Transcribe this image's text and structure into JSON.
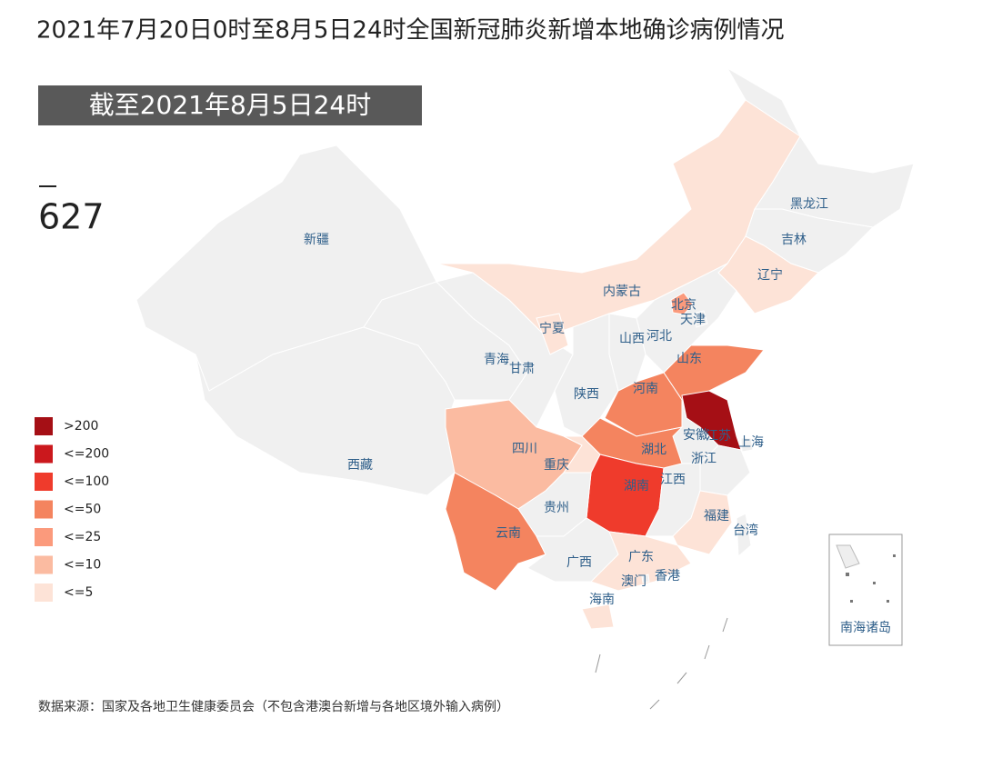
{
  "title": "2021年7月20日0时至8月5日24时全国新冠肺炎新增本地确诊病例情况",
  "badge": "截至2021年8月5日24时",
  "total": 627,
  "legend": [
    {
      "label": ">200",
      "color": "#a50f15"
    },
    {
      "label": "<=200",
      "color": "#cb181d"
    },
    {
      "label": "<=100",
      "color": "#ef3b2c"
    },
    {
      "label": "<=50",
      "color": "#f4845f"
    },
    {
      "label": "<=25",
      "color": "#fb9a7c"
    },
    {
      "label": "<=10",
      "color": "#fbbba1"
    },
    {
      "label": "<=5",
      "color": "#fde3d7"
    }
  ],
  "regions": [
    {
      "name": "新疆",
      "color": "#f0f0f0"
    },
    {
      "name": "西藏",
      "color": "#f0f0f0"
    },
    {
      "name": "青海",
      "color": "#f0f0f0"
    },
    {
      "name": "甘肃",
      "color": "#f0f0f0"
    },
    {
      "name": "内蒙古",
      "color": "#fde3d7"
    },
    {
      "name": "黑龙江",
      "color": "#f0f0f0"
    },
    {
      "name": "吉林",
      "color": "#f0f0f0"
    },
    {
      "name": "辽宁",
      "color": "#fde3d7"
    },
    {
      "name": "河北",
      "color": "#f0f0f0"
    },
    {
      "name": "北京",
      "color": "#fb9a7c"
    },
    {
      "name": "天津",
      "color": "#f0f0f0"
    },
    {
      "name": "山西",
      "color": "#f0f0f0"
    },
    {
      "name": "陕西",
      "color": "#f0f0f0"
    },
    {
      "name": "宁夏",
      "color": "#fde3d7"
    },
    {
      "name": "山东",
      "color": "#f4845f"
    },
    {
      "name": "河南",
      "color": "#f4845f"
    },
    {
      "name": "江苏",
      "color": "#a50f15"
    },
    {
      "name": "上海",
      "color": "#f0f0f0"
    },
    {
      "name": "安徽",
      "color": "#f0f0f0"
    },
    {
      "name": "浙江",
      "color": "#f0f0f0"
    },
    {
      "name": "湖北",
      "color": "#f4845f"
    },
    {
      "name": "四川",
      "color": "#fbbba1"
    },
    {
      "name": "重庆",
      "color": "#fde3d7"
    },
    {
      "name": "湖南",
      "color": "#ef3b2c"
    },
    {
      "name": "江西",
      "color": "#f0f0f0"
    },
    {
      "name": "福建",
      "color": "#fde3d7"
    },
    {
      "name": "贵州",
      "color": "#f0f0f0"
    },
    {
      "name": "云南",
      "color": "#f4845f"
    },
    {
      "name": "广西",
      "color": "#f0f0f0"
    },
    {
      "name": "广东",
      "color": "#fde3d7"
    },
    {
      "name": "香港",
      "color": "#f0f0f0"
    },
    {
      "name": "澳门",
      "color": "#f0f0f0"
    },
    {
      "name": "海南",
      "color": "#fde3d7"
    },
    {
      "name": "台湾",
      "color": "#f0f0f0"
    }
  ],
  "inset_label": "南海诸岛",
  "source": "数据来源：国家及各地卫生健康委员会（不包含港澳台新增与各地区境外输入病例）"
}
